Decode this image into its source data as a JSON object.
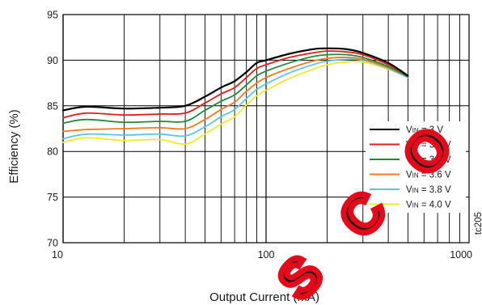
{
  "chart_data": {
    "type": "line",
    "xlabel": "Output Current (mA)",
    "ylabel": "Efficiency (%)",
    "xscale": "log",
    "xlim": [
      10,
      1000
    ],
    "ylim": [
      70,
      95
    ],
    "x_ticks": [
      10,
      100,
      1000
    ],
    "y_ticks": [
      70,
      75,
      80,
      85,
      90,
      95
    ],
    "grid": true,
    "legend_position": "lower-right",
    "code_label": "tc205",
    "series": [
      {
        "name": "V",
        "sub": "IN",
        "suffix": " = 3 V",
        "color": "#000000",
        "x": [
          10,
          13,
          20,
          30,
          40,
          50,
          60,
          70,
          80,
          90,
          100,
          130,
          170,
          200,
          250,
          300,
          400,
          500
        ],
        "y": [
          84.5,
          84.9,
          84.7,
          84.8,
          85.0,
          86.0,
          87.0,
          87.7,
          88.7,
          89.7,
          90.0,
          90.7,
          91.2,
          91.3,
          91.2,
          90.8,
          89.7,
          88.3
        ]
      },
      {
        "name": "V",
        "sub": "IN",
        "suffix": " = 3.2 V",
        "color": "#e0201b",
        "x": [
          10,
          13,
          20,
          30,
          40,
          50,
          60,
          70,
          80,
          90,
          100,
          130,
          170,
          200,
          250,
          300,
          400,
          500
        ],
        "y": [
          83.7,
          84.2,
          84.0,
          84.1,
          84.2,
          85.3,
          86.3,
          87.0,
          88.1,
          89.1,
          89.5,
          90.3,
          90.8,
          91.0,
          90.9,
          90.6,
          89.5,
          88.3
        ]
      },
      {
        "name": "V",
        "sub": "IN",
        "suffix": " = 3.4 V",
        "color": "#1f8a3c",
        "x": [
          10,
          13,
          20,
          30,
          40,
          50,
          60,
          70,
          80,
          90,
          100,
          130,
          170,
          200,
          250,
          300,
          400,
          500
        ],
        "y": [
          83.1,
          83.5,
          83.2,
          83.3,
          83.3,
          84.5,
          85.5,
          86.2,
          87.3,
          88.3,
          88.8,
          89.7,
          90.4,
          90.6,
          90.6,
          90.3,
          89.3,
          88.2
        ]
      },
      {
        "name": "V",
        "sub": "IN",
        "suffix": " = 3.6 V",
        "color": "#f07a1e",
        "x": [
          10,
          13,
          20,
          30,
          40,
          50,
          60,
          70,
          80,
          90,
          100,
          130,
          170,
          200,
          250,
          300,
          400,
          500
        ],
        "y": [
          82.2,
          82.4,
          82.5,
          82.6,
          82.5,
          83.5,
          84.6,
          85.4,
          86.6,
          87.5,
          88.1,
          89.1,
          89.9,
          90.2,
          90.3,
          90.1,
          89.2,
          88.2
        ]
      },
      {
        "name": "V",
        "sub": "IN",
        "suffix": " = 3.8 V",
        "color": "#5bc4e8",
        "x": [
          10,
          13,
          20,
          30,
          40,
          50,
          60,
          70,
          80,
          90,
          100,
          130,
          170,
          200,
          250,
          300,
          400,
          500
        ],
        "y": [
          81.4,
          81.9,
          81.8,
          81.9,
          81.7,
          82.7,
          83.8,
          84.6,
          85.8,
          86.8,
          87.4,
          88.6,
          89.5,
          89.9,
          90.1,
          90.0,
          89.1,
          88.1
        ]
      },
      {
        "name": "V",
        "sub": "IN",
        "suffix": " = 4.0 V",
        "color": "#f5e72a",
        "x": [
          10,
          13,
          20,
          30,
          40,
          50,
          60,
          70,
          80,
          90,
          100,
          130,
          170,
          200,
          250,
          300,
          400,
          500
        ],
        "y": [
          81.0,
          81.5,
          81.2,
          81.3,
          80.8,
          81.9,
          83.0,
          83.8,
          85.1,
          86.1,
          86.7,
          88.0,
          89.0,
          89.5,
          89.8,
          89.8,
          89.0,
          88.1
        ]
      }
    ]
  },
  "watermark": {
    "text": "SCO",
    "color": "#e5091a"
  }
}
